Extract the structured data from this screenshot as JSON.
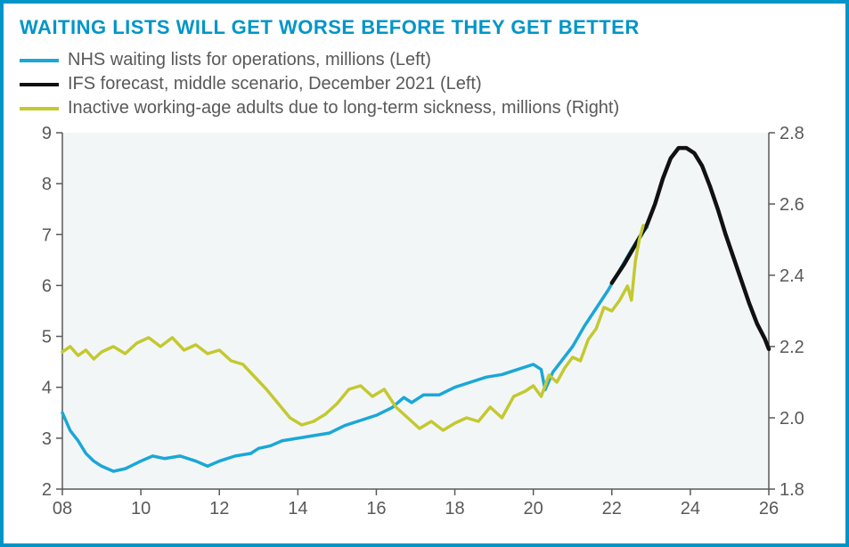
{
  "title": {
    "text": "WAITING LISTS WILL GET WORSE BEFORE THEY GET BETTER",
    "color": "#0095c8",
    "fontsize": 22,
    "fontweight": 700
  },
  "legend": {
    "fontsize": 20,
    "color": "#595959",
    "swatch_width": 44,
    "swatch_height": 4,
    "items": [
      {
        "label": "NHS waiting lists for operations, millions (Left)",
        "color": "#1aa7d8"
      },
      {
        "label": "IFS forecast, middle scenario, December 2021 (Left)",
        "color": "#111111"
      },
      {
        "label": "Inactive working-age adults due to long-term sickness, millions (Right)",
        "color": "#c3c92f"
      }
    ]
  },
  "chart": {
    "type": "line-dual-axis",
    "background_color": "#ffffff",
    "plot_background": "#f3f6f7",
    "axis_color": "#595959",
    "axis_fontsize": 20,
    "x": {
      "min": 8,
      "max": 26,
      "ticks": [
        8,
        10,
        12,
        14,
        16,
        18,
        20,
        22,
        24,
        26
      ],
      "tick_labels": [
        "08",
        "10",
        "12",
        "14",
        "16",
        "18",
        "20",
        "22",
        "24",
        "26"
      ]
    },
    "y_left": {
      "min": 2,
      "max": 9,
      "ticks": [
        2,
        3,
        4,
        5,
        6,
        7,
        8,
        9
      ]
    },
    "y_right": {
      "min": 1.8,
      "max": 2.8,
      "ticks": [
        1.8,
        2.0,
        2.2,
        2.4,
        2.6,
        2.8
      ],
      "tick_labels": [
        "1.8",
        "2.0",
        "2.2",
        "2.4",
        "2.6",
        "2.8"
      ]
    },
    "series": [
      {
        "name": "nhs_waiting_lists",
        "axis": "left",
        "color": "#1aa7d8",
        "width": 3.5,
        "points": [
          [
            8.0,
            3.5
          ],
          [
            8.2,
            3.15
          ],
          [
            8.4,
            2.95
          ],
          [
            8.6,
            2.7
          ],
          [
            8.8,
            2.55
          ],
          [
            9.0,
            2.45
          ],
          [
            9.3,
            2.35
          ],
          [
            9.6,
            2.4
          ],
          [
            10.0,
            2.55
          ],
          [
            10.3,
            2.65
          ],
          [
            10.6,
            2.6
          ],
          [
            11.0,
            2.65
          ],
          [
            11.4,
            2.55
          ],
          [
            11.7,
            2.45
          ],
          [
            12.0,
            2.55
          ],
          [
            12.4,
            2.65
          ],
          [
            12.8,
            2.7
          ],
          [
            13.0,
            2.8
          ],
          [
            13.3,
            2.85
          ],
          [
            13.6,
            2.95
          ],
          [
            14.0,
            3.0
          ],
          [
            14.4,
            3.05
          ],
          [
            14.8,
            3.1
          ],
          [
            15.2,
            3.25
          ],
          [
            15.6,
            3.35
          ],
          [
            16.0,
            3.45
          ],
          [
            16.4,
            3.6
          ],
          [
            16.7,
            3.8
          ],
          [
            16.9,
            3.7
          ],
          [
            17.2,
            3.85
          ],
          [
            17.6,
            3.85
          ],
          [
            18.0,
            4.0
          ],
          [
            18.4,
            4.1
          ],
          [
            18.8,
            4.2
          ],
          [
            19.2,
            4.25
          ],
          [
            19.6,
            4.35
          ],
          [
            20.0,
            4.45
          ],
          [
            20.2,
            4.35
          ],
          [
            20.3,
            3.95
          ],
          [
            20.5,
            4.3
          ],
          [
            20.8,
            4.6
          ],
          [
            21.0,
            4.8
          ],
          [
            21.3,
            5.2
          ],
          [
            21.6,
            5.55
          ],
          [
            21.9,
            5.9
          ],
          [
            22.2,
            6.3
          ],
          [
            22.5,
            6.7
          ],
          [
            22.7,
            6.95
          ],
          [
            22.9,
            7.15
          ]
        ]
      },
      {
        "name": "ifs_forecast",
        "axis": "left",
        "color": "#111111",
        "width": 4.5,
        "points": [
          [
            22.0,
            6.05
          ],
          [
            22.3,
            6.4
          ],
          [
            22.6,
            6.8
          ],
          [
            22.9,
            7.2
          ],
          [
            23.1,
            7.6
          ],
          [
            23.3,
            8.1
          ],
          [
            23.5,
            8.5
          ],
          [
            23.7,
            8.7
          ],
          [
            23.9,
            8.7
          ],
          [
            24.1,
            8.6
          ],
          [
            24.3,
            8.35
          ],
          [
            24.5,
            7.95
          ],
          [
            24.7,
            7.5
          ],
          [
            24.9,
            7.0
          ],
          [
            25.1,
            6.55
          ],
          [
            25.3,
            6.1
          ],
          [
            25.5,
            5.65
          ],
          [
            25.7,
            5.25
          ],
          [
            25.9,
            4.95
          ],
          [
            26.0,
            4.75
          ]
        ]
      },
      {
        "name": "inactive_sickness",
        "axis": "right",
        "color": "#c3c92f",
        "width": 3.5,
        "points": [
          [
            8.0,
            2.185
          ],
          [
            8.2,
            2.2
          ],
          [
            8.4,
            2.175
          ],
          [
            8.6,
            2.19
          ],
          [
            8.8,
            2.165
          ],
          [
            9.0,
            2.185
          ],
          [
            9.3,
            2.2
          ],
          [
            9.6,
            2.18
          ],
          [
            9.9,
            2.21
          ],
          [
            10.2,
            2.225
          ],
          [
            10.5,
            2.2
          ],
          [
            10.8,
            2.225
          ],
          [
            11.1,
            2.19
          ],
          [
            11.4,
            2.205
          ],
          [
            11.7,
            2.18
          ],
          [
            12.0,
            2.19
          ],
          [
            12.3,
            2.16
          ],
          [
            12.6,
            2.15
          ],
          [
            12.9,
            2.115
          ],
          [
            13.2,
            2.08
          ],
          [
            13.5,
            2.04
          ],
          [
            13.8,
            2.0
          ],
          [
            14.1,
            1.98
          ],
          [
            14.4,
            1.99
          ],
          [
            14.7,
            2.01
          ],
          [
            15.0,
            2.04
          ],
          [
            15.3,
            2.08
          ],
          [
            15.6,
            2.09
          ],
          [
            15.9,
            2.06
          ],
          [
            16.2,
            2.08
          ],
          [
            16.5,
            2.03
          ],
          [
            16.8,
            2.0
          ],
          [
            17.1,
            1.97
          ],
          [
            17.4,
            1.99
          ],
          [
            17.7,
            1.965
          ],
          [
            18.0,
            1.985
          ],
          [
            18.3,
            2.0
          ],
          [
            18.6,
            1.99
          ],
          [
            18.9,
            2.03
          ],
          [
            19.2,
            2.0
          ],
          [
            19.5,
            2.06
          ],
          [
            19.8,
            2.075
          ],
          [
            20.0,
            2.09
          ],
          [
            20.2,
            2.06
          ],
          [
            20.4,
            2.12
          ],
          [
            20.6,
            2.1
          ],
          [
            20.8,
            2.14
          ],
          [
            21.0,
            2.17
          ],
          [
            21.2,
            2.16
          ],
          [
            21.4,
            2.22
          ],
          [
            21.6,
            2.25
          ],
          [
            21.8,
            2.31
          ],
          [
            22.0,
            2.3
          ],
          [
            22.2,
            2.33
          ],
          [
            22.4,
            2.37
          ],
          [
            22.5,
            2.33
          ],
          [
            22.6,
            2.44
          ],
          [
            22.7,
            2.5
          ],
          [
            22.8,
            2.54
          ]
        ]
      }
    ]
  }
}
